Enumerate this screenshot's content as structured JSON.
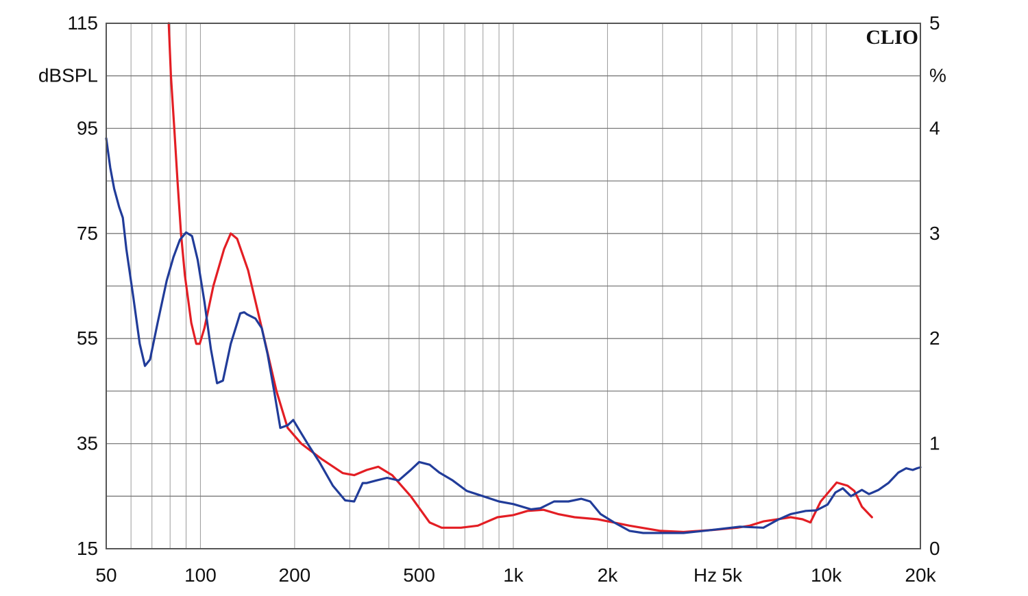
{
  "chart_data": {
    "type": "line",
    "brand": "CLIO",
    "x_scale": "log",
    "xlim": [
      50,
      20000
    ],
    "x_tick_labels": [
      {
        "value": 50,
        "label": "50"
      },
      {
        "value": 100,
        "label": "100"
      },
      {
        "value": 200,
        "label": "200"
      },
      {
        "value": 500,
        "label": "500"
      },
      {
        "value": 1000,
        "label": "1k"
      },
      {
        "value": 2000,
        "label": "2k"
      },
      {
        "value": 5000,
        "label": "5k"
      },
      {
        "value": 10000,
        "label": "10k"
      },
      {
        "value": 20000,
        "label": "20k"
      }
    ],
    "x_unit_label": "Hz",
    "y_left": {
      "unit": "dBSPL",
      "lim": [
        15,
        115
      ],
      "ticks": [
        "115",
        "95",
        "75",
        "55",
        "35",
        "15"
      ]
    },
    "y_right": {
      "unit": "%",
      "lim": [
        0,
        5
      ],
      "ticks": [
        "5",
        "4",
        "3",
        "2",
        "1",
        "0"
      ]
    },
    "grid": true,
    "series": [
      {
        "color": "#e31e24",
        "axis": "right",
        "points": [
          [
            79.2,
            5.0
          ],
          [
            80.5,
            4.5
          ],
          [
            82.5,
            4.0
          ],
          [
            84.5,
            3.5
          ],
          [
            86.7,
            3.0
          ],
          [
            89.2,
            2.6
          ],
          [
            93.5,
            2.15
          ],
          [
            97,
            1.95
          ],
          [
            99.5,
            1.95
          ],
          [
            103,
            2.1
          ],
          [
            110,
            2.5
          ],
          [
            119,
            2.85
          ],
          [
            125,
            3.0
          ],
          [
            131,
            2.95
          ],
          [
            142,
            2.65
          ],
          [
            160,
            2.0
          ],
          [
            175,
            1.5
          ],
          [
            190,
            1.15
          ],
          [
            210,
            1.0
          ],
          [
            245,
            0.85
          ],
          [
            285,
            0.72
          ],
          [
            310,
            0.7
          ],
          [
            340,
            0.75
          ],
          [
            370,
            0.78
          ],
          [
            410,
            0.7
          ],
          [
            470,
            0.5
          ],
          [
            540,
            0.25
          ],
          [
            590,
            0.2
          ],
          [
            680,
            0.2
          ],
          [
            770,
            0.22
          ],
          [
            890,
            0.3
          ],
          [
            1000,
            0.32
          ],
          [
            1110,
            0.36
          ],
          [
            1250,
            0.37
          ],
          [
            1390,
            0.33
          ],
          [
            1570,
            0.3
          ],
          [
            1860,
            0.28
          ],
          [
            2350,
            0.22
          ],
          [
            2950,
            0.17
          ],
          [
            3500,
            0.16
          ],
          [
            4400,
            0.18
          ],
          [
            5200,
            0.2
          ],
          [
            5700,
            0.22
          ],
          [
            6300,
            0.26
          ],
          [
            7000,
            0.28
          ],
          [
            7700,
            0.3
          ],
          [
            8400,
            0.28
          ],
          [
            8900,
            0.25
          ],
          [
            9600,
            0.45
          ],
          [
            10800,
            0.63
          ],
          [
            11700,
            0.6
          ],
          [
            12300,
            0.55
          ],
          [
            13000,
            0.4
          ],
          [
            14000,
            0.3
          ]
        ]
      },
      {
        "color": "#213c99",
        "axis": "left",
        "points": [
          [
            50,
            93.1
          ],
          [
            51.5,
            87.5
          ],
          [
            53,
            83.5
          ],
          [
            55,
            80
          ],
          [
            56.5,
            78
          ],
          [
            58,
            72
          ],
          [
            61,
            63
          ],
          [
            64,
            54
          ],
          [
            66.5,
            49.8
          ],
          [
            69,
            51
          ],
          [
            73,
            58
          ],
          [
            78,
            66
          ],
          [
            82,
            70.5
          ],
          [
            86,
            73.8
          ],
          [
            90,
            75.2
          ],
          [
            94,
            74.5
          ],
          [
            98,
            70
          ],
          [
            103,
            62
          ],
          [
            108,
            53
          ],
          [
            113,
            46.5
          ],
          [
            118,
            47
          ],
          [
            125,
            54
          ],
          [
            134,
            59.8
          ],
          [
            138,
            60
          ],
          [
            141,
            59.6
          ],
          [
            150,
            58.8
          ],
          [
            157,
            57
          ],
          [
            164,
            52
          ],
          [
            172,
            45
          ],
          [
            180,
            38
          ],
          [
            190,
            38.5
          ],
          [
            198,
            39.5
          ],
          [
            205,
            38
          ],
          [
            220,
            35
          ],
          [
            240,
            31.5
          ],
          [
            265,
            27
          ],
          [
            290,
            24.2
          ],
          [
            310,
            24
          ],
          [
            330,
            27.5
          ],
          [
            340,
            27.5
          ],
          [
            365,
            28
          ],
          [
            395,
            28.5
          ],
          [
            430,
            28
          ],
          [
            470,
            30
          ],
          [
            500,
            31.5
          ],
          [
            540,
            31
          ],
          [
            580,
            29.5
          ],
          [
            640,
            28
          ],
          [
            710,
            26
          ],
          [
            800,
            25
          ],
          [
            900,
            24
          ],
          [
            1000,
            23.5
          ],
          [
            1140,
            22.5
          ],
          [
            1220,
            22.7
          ],
          [
            1350,
            24
          ],
          [
            1500,
            24
          ],
          [
            1650,
            24.5
          ],
          [
            1760,
            24
          ],
          [
            1900,
            21.6
          ],
          [
            2100,
            20
          ],
          [
            2350,
            18.4
          ],
          [
            2600,
            18
          ],
          [
            3000,
            18
          ],
          [
            3500,
            18
          ],
          [
            4200,
            18.5
          ],
          [
            5300,
            19.2
          ],
          [
            6300,
            19
          ],
          [
            7000,
            20.5
          ],
          [
            7700,
            21.6
          ],
          [
            8600,
            22.2
          ],
          [
            9300,
            22.3
          ],
          [
            10100,
            23.4
          ],
          [
            10700,
            25.7
          ],
          [
            11300,
            26.5
          ],
          [
            12000,
            25
          ],
          [
            13000,
            26.2
          ],
          [
            13700,
            25.4
          ],
          [
            14700,
            26.2
          ],
          [
            15800,
            27.5
          ],
          [
            17000,
            29.5
          ],
          [
            18000,
            30.3
          ],
          [
            18900,
            30
          ],
          [
            19500,
            30.3
          ],
          [
            20000,
            30.5
          ]
        ]
      }
    ]
  }
}
